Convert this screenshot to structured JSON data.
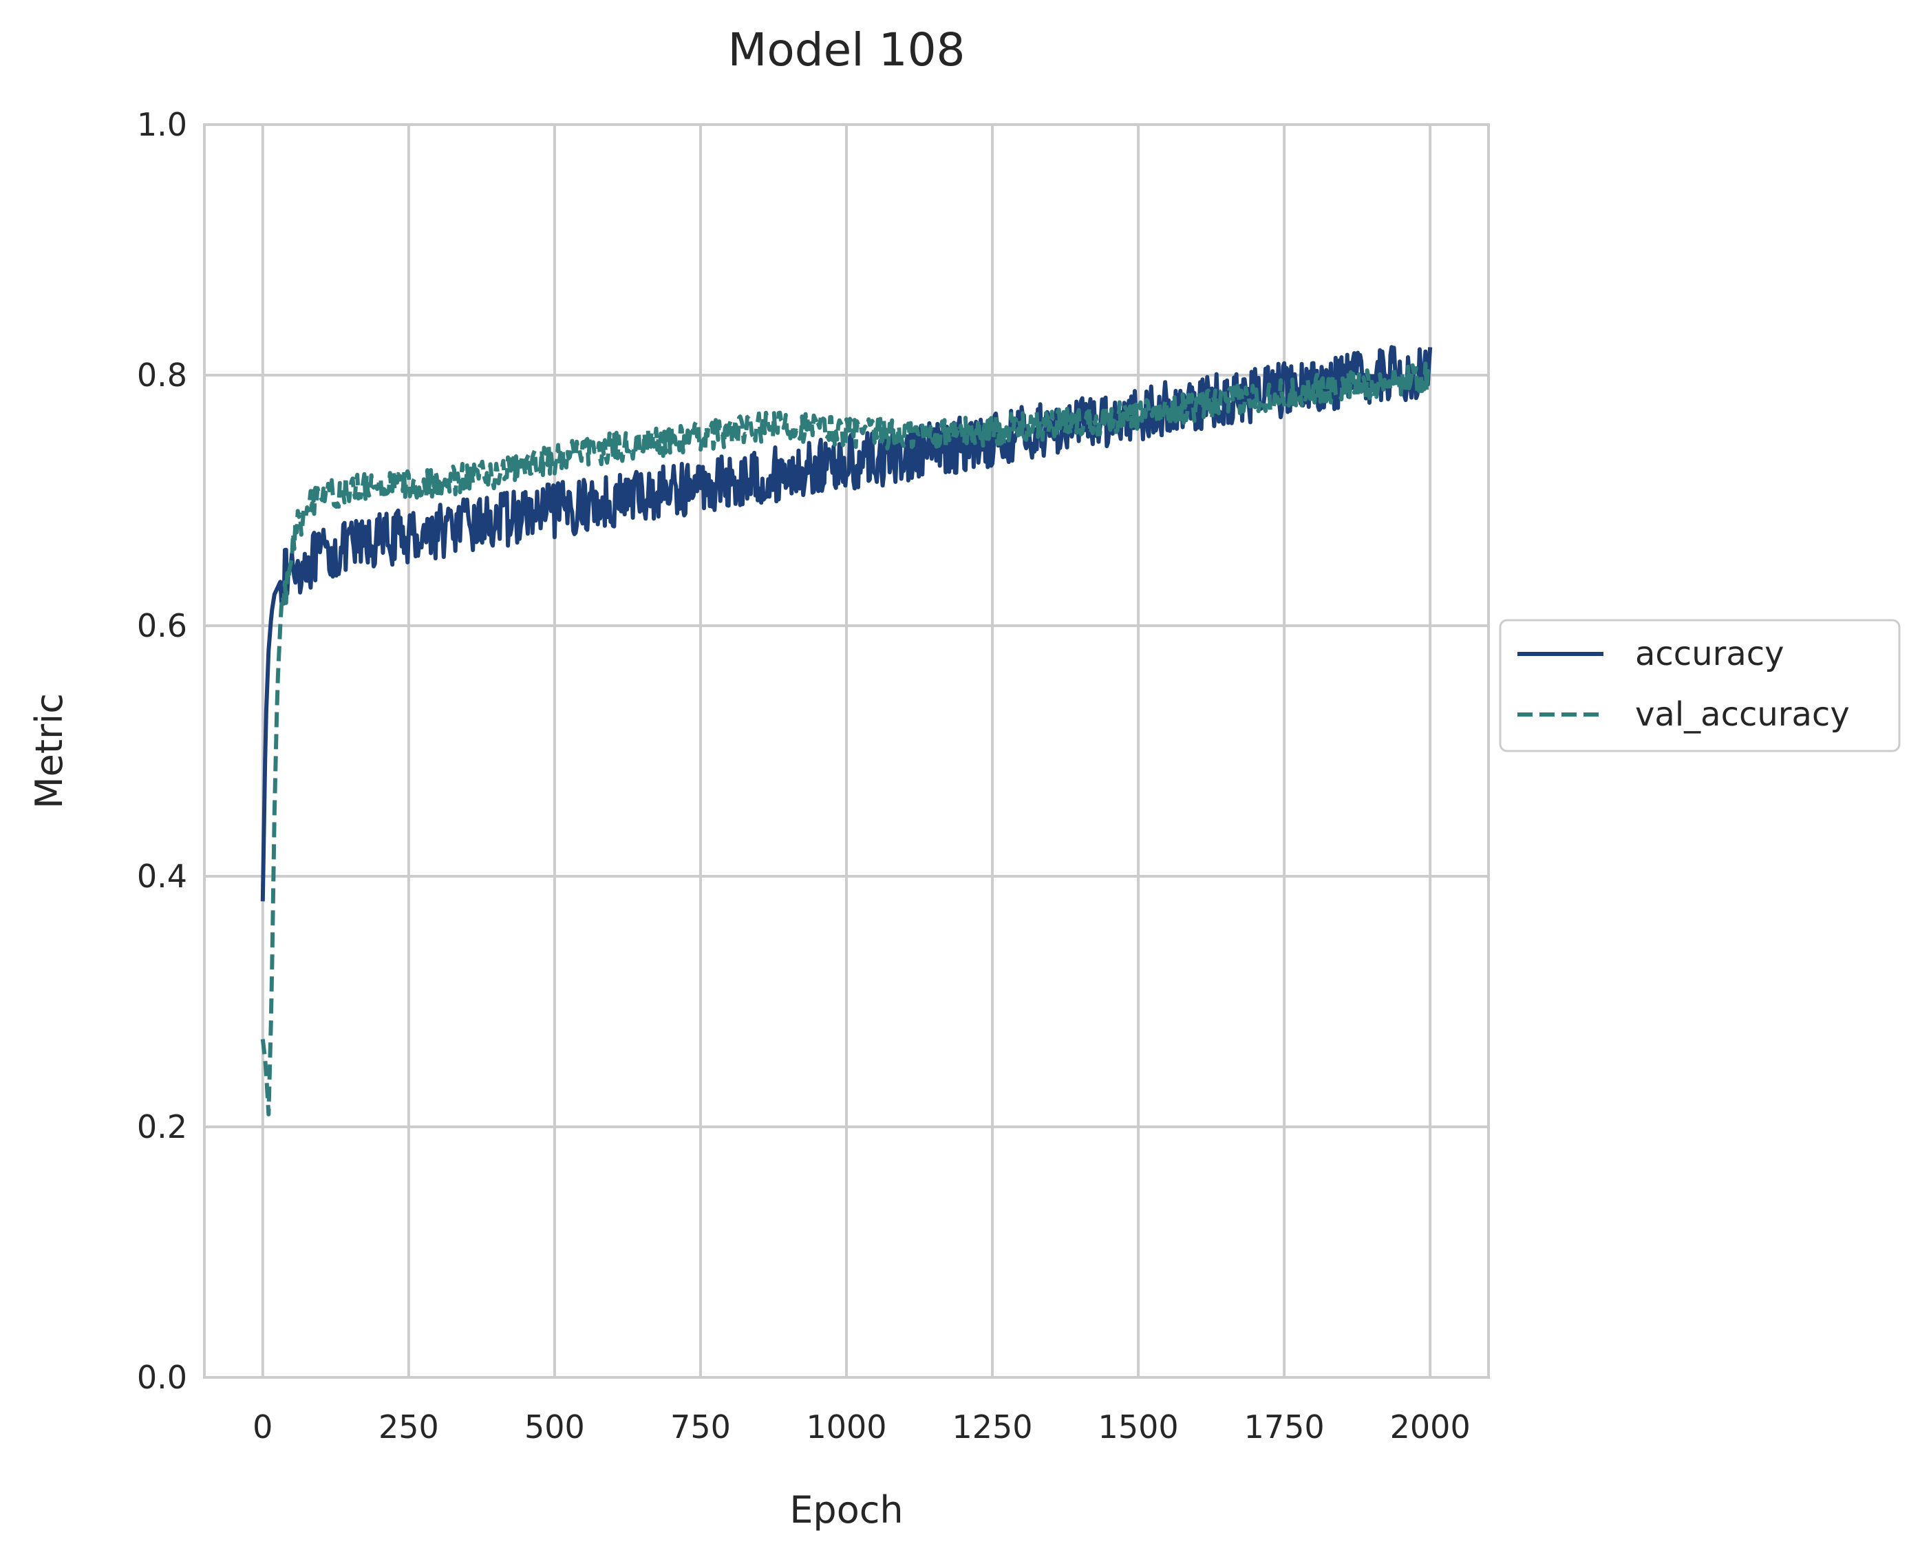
{
  "chart_data": {
    "type": "line",
    "title": "Model 108",
    "xlabel": "Epoch",
    "ylabel": "Metric",
    "xlim": [
      -100,
      2100
    ],
    "ylim": [
      0.0,
      1.0
    ],
    "x_ticks": [
      0,
      250,
      500,
      750,
      1000,
      1250,
      1500,
      1750,
      2000
    ],
    "x_tick_labels": [
      "0",
      "250",
      "500",
      "750",
      "1000",
      "1250",
      "1500",
      "1750",
      "2000"
    ],
    "y_ticks": [
      0.0,
      0.2,
      0.4,
      0.6,
      0.8,
      1.0
    ],
    "y_tick_labels": [
      "0.0",
      "0.2",
      "0.4",
      "0.6",
      "0.8",
      "1.0"
    ],
    "grid": true,
    "legend": {
      "placement": "center-right, outside plot",
      "entries": [
        "accuracy",
        "val_accuracy"
      ]
    },
    "series": [
      {
        "name": "accuracy",
        "style": "solid",
        "color": "#1c3f7a",
        "points": [
          [
            0,
            0.38
          ],
          [
            5,
            0.52
          ],
          [
            10,
            0.58
          ],
          [
            15,
            0.61
          ],
          [
            20,
            0.625
          ],
          [
            30,
            0.635
          ],
          [
            50,
            0.645
          ],
          [
            100,
            0.655
          ],
          [
            150,
            0.662
          ],
          [
            200,
            0.668
          ],
          [
            250,
            0.672
          ],
          [
            300,
            0.676
          ],
          [
            350,
            0.68
          ],
          [
            400,
            0.684
          ],
          [
            450,
            0.688
          ],
          [
            500,
            0.692
          ],
          [
            600,
            0.7
          ],
          [
            700,
            0.708
          ],
          [
            800,
            0.715
          ],
          [
            900,
            0.722
          ],
          [
            1000,
            0.73
          ],
          [
            1100,
            0.736
          ],
          [
            1200,
            0.745
          ],
          [
            1300,
            0.753
          ],
          [
            1400,
            0.761
          ],
          [
            1500,
            0.769
          ],
          [
            1600,
            0.777
          ],
          [
            1700,
            0.785
          ],
          [
            1800,
            0.792
          ],
          [
            1900,
            0.798
          ],
          [
            2000,
            0.805
          ]
        ]
      },
      {
        "name": "val_accuracy",
        "style": "dashed",
        "color": "#2e7d7a",
        "points": [
          [
            0,
            0.27
          ],
          [
            5,
            0.25
          ],
          [
            10,
            0.21
          ],
          [
            15,
            0.3
          ],
          [
            20,
            0.45
          ],
          [
            25,
            0.55
          ],
          [
            30,
            0.6
          ],
          [
            40,
            0.63
          ],
          [
            50,
            0.66
          ],
          [
            60,
            0.68
          ],
          [
            80,
            0.695
          ],
          [
            100,
            0.705
          ],
          [
            150,
            0.708
          ],
          [
            200,
            0.71
          ],
          [
            250,
            0.713
          ],
          [
            300,
            0.715
          ],
          [
            350,
            0.718
          ],
          [
            400,
            0.722
          ],
          [
            450,
            0.728
          ],
          [
            500,
            0.733
          ],
          [
            600,
            0.742
          ],
          [
            700,
            0.748
          ],
          [
            800,
            0.755
          ],
          [
            900,
            0.76
          ],
          [
            1000,
            0.755
          ],
          [
            1100,
            0.752
          ],
          [
            1200,
            0.754
          ],
          [
            1300,
            0.758
          ],
          [
            1400,
            0.763
          ],
          [
            1500,
            0.768
          ],
          [
            1600,
            0.775
          ],
          [
            1700,
            0.782
          ],
          [
            1800,
            0.788
          ],
          [
            1900,
            0.793
          ],
          [
            2000,
            0.798
          ]
        ]
      }
    ]
  }
}
